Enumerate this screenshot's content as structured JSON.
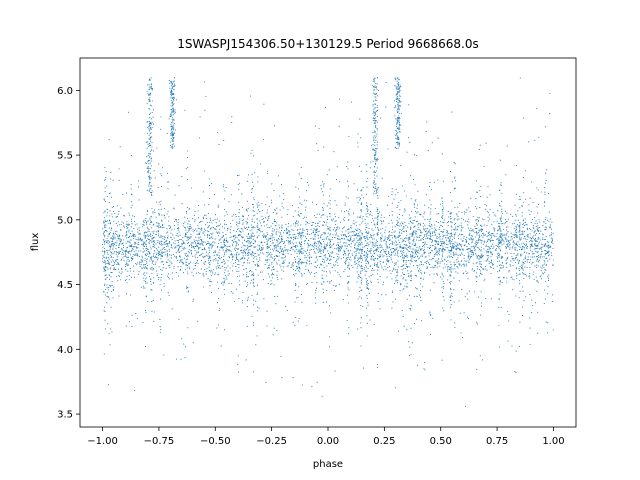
{
  "chart_data": {
    "type": "scatter",
    "title": "1SWASPJ154306.50+130129.5 Period 9668668.0s",
    "xlabel": "phase",
    "ylabel": "flux",
    "xlim": [
      -1.1,
      1.1
    ],
    "ylim": [
      3.4,
      6.25
    ],
    "xticks": [
      -1.0,
      -0.75,
      -0.5,
      -0.25,
      0.0,
      0.25,
      0.5,
      0.75,
      1.0
    ],
    "xtick_labels": [
      "−1.00",
      "−0.75",
      "−0.50",
      "−0.25",
      "0.00",
      "0.25",
      "0.50",
      "0.75",
      "1.00"
    ],
    "yticks": [
      3.5,
      4.0,
      4.5,
      5.0,
      5.5,
      6.0
    ],
    "ytick_labels": [
      "3.5",
      "4.0",
      "4.5",
      "5.0",
      "5.5",
      "6.0"
    ],
    "grid": false,
    "legend": "none",
    "marker_color": "#1f77b4",
    "series": [
      {
        "phase_range": [
          -1.0,
          1.0
        ],
        "flux_center": 4.8,
        "flux_core_spread": [
          4.5,
          5.05
        ],
        "flux_outlier_range": [
          3.55,
          6.1
        ],
        "high_flux_streaks": [
          {
            "phase": -0.79,
            "flux_range": [
              5.2,
              6.1
            ]
          },
          {
            "phase": -0.69,
            "flux_range": [
              5.55,
              6.1
            ]
          },
          {
            "phase": 0.21,
            "flux_range": [
              5.2,
              6.1
            ]
          },
          {
            "phase": 0.31,
            "flux_range": [
              5.55,
              6.1
            ]
          }
        ]
      }
    ]
  }
}
